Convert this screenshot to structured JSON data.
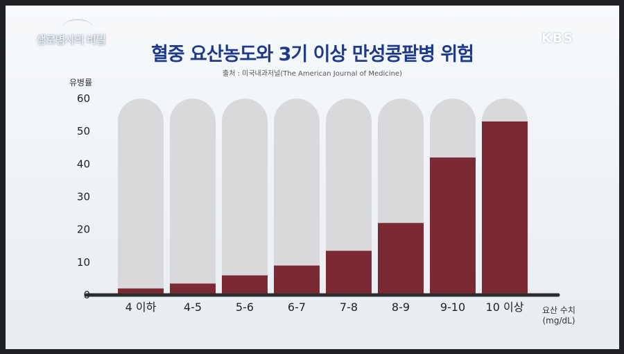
{
  "program_logo": "생로병사의 비밀",
  "broadcaster": "KBS",
  "chart_data": {
    "type": "bar",
    "title": "혈중 요산농도와 3기 이상 만성콩팥병 위험",
    "subtitle": "출처 : 미국내과저널(The American Journal of Medicine)",
    "ylabel": "유병률",
    "xlabel_line1": "요산 수치",
    "xlabel_line2": "(mg/dL)",
    "categories": [
      "4 이하",
      "4-5",
      "5-6",
      "6-7",
      "7-8",
      "8-9",
      "9-10",
      "10 이상"
    ],
    "values": [
      2,
      3.5,
      6,
      9,
      13.5,
      22,
      42,
      53
    ],
    "ylim": [
      0,
      60
    ],
    "yticks": [
      0,
      10,
      20,
      30,
      40,
      50,
      60
    ],
    "colors": {
      "bar": "#7b2a33",
      "track": "#d9d9dc",
      "axis": "#2c2c2c",
      "title": "#1d3a8a"
    }
  }
}
